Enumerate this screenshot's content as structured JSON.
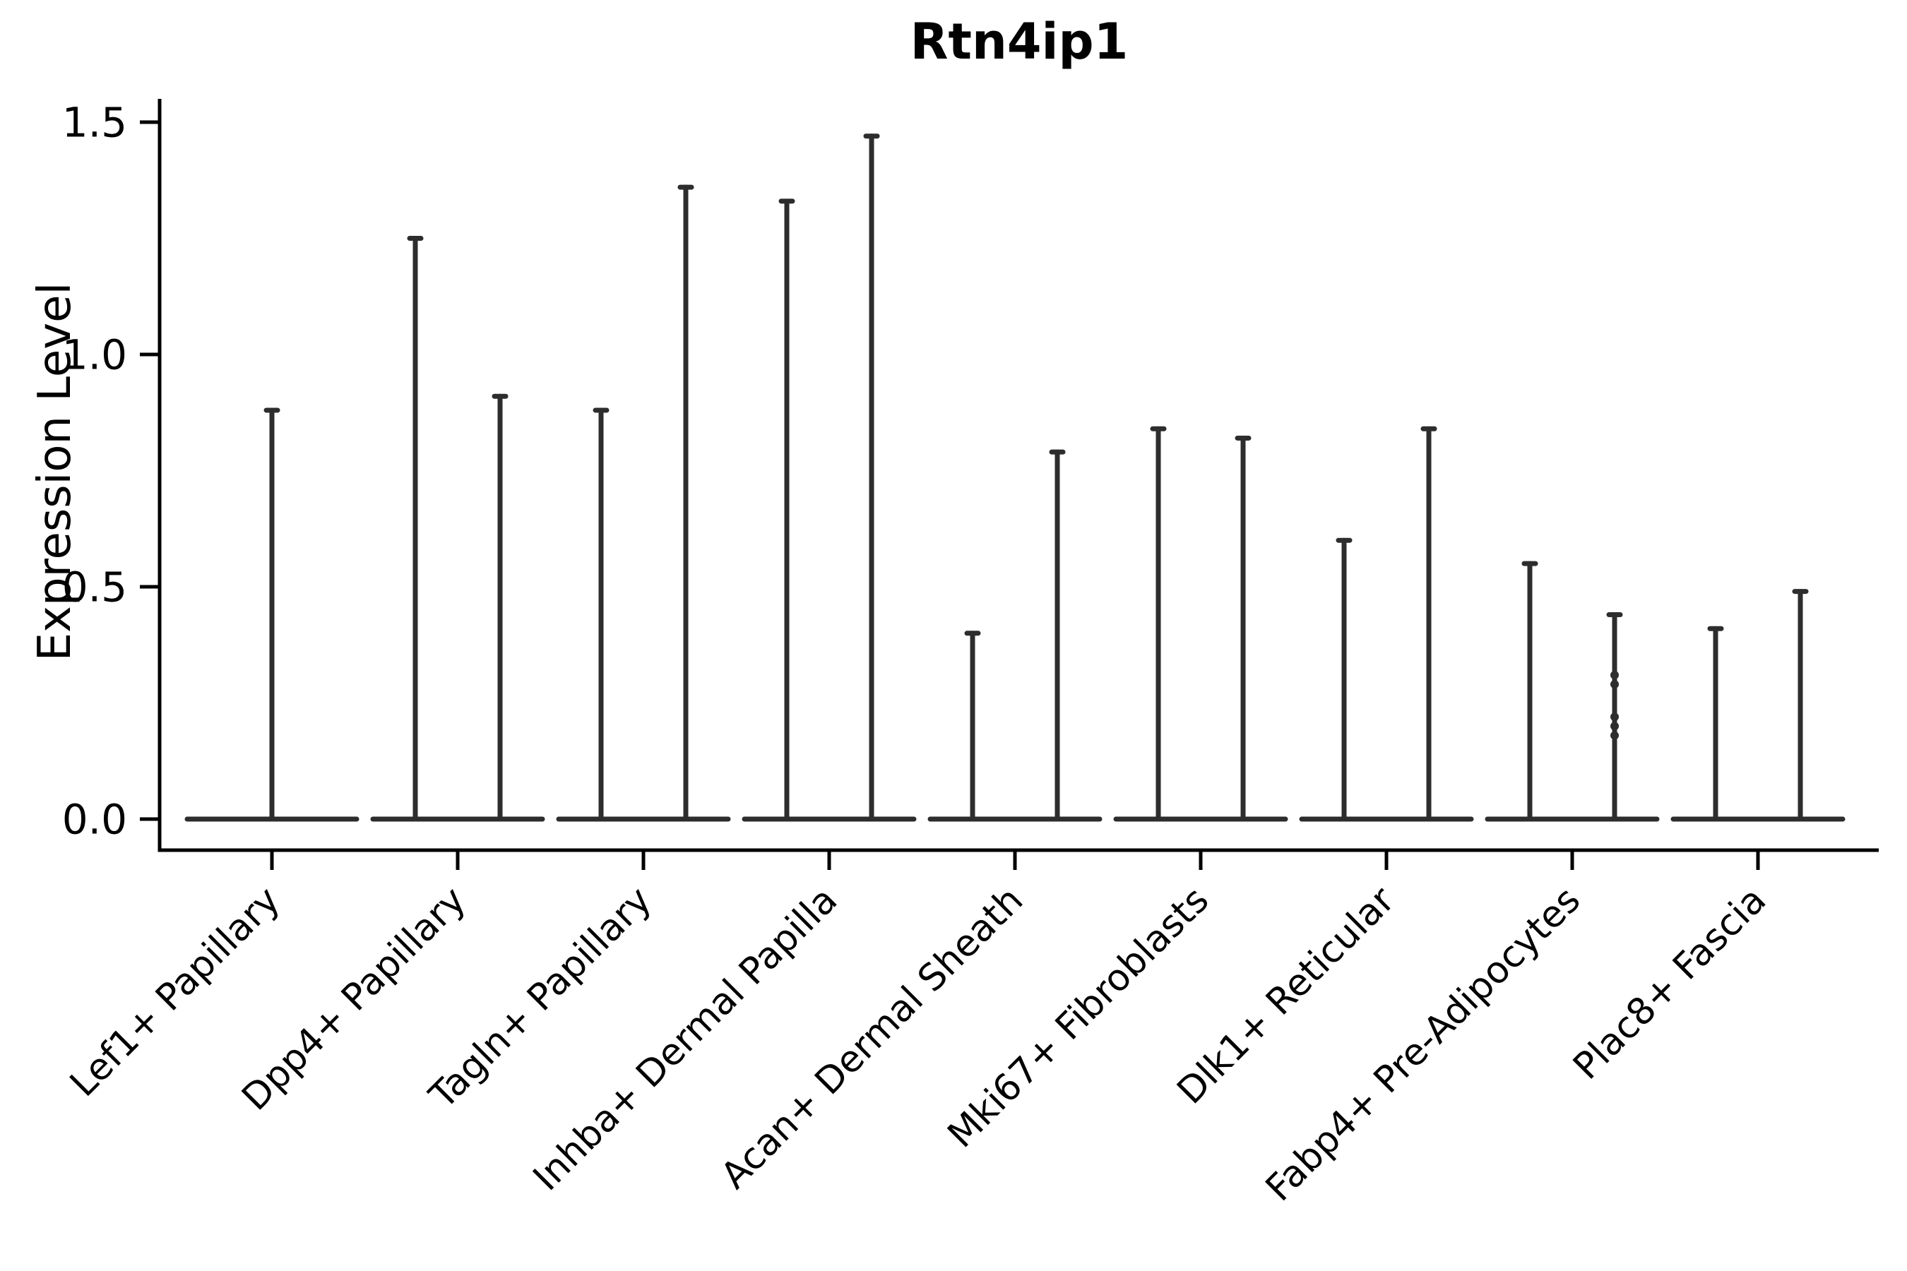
{
  "figure": {
    "title": "Rtn4ip1",
    "ylabel": "Expression Level"
  },
  "chart_data": {
    "type": "violin",
    "title": "Rtn4ip1",
    "xlabel": "",
    "ylabel": "Expression Level",
    "ylim": [
      0,
      1.55
    ],
    "yticks": [
      0.0,
      0.5,
      1.0,
      1.5
    ],
    "ytick_labels": [
      "0.0",
      "0.5",
      "1.0",
      "1.5"
    ],
    "grid": false,
    "legend": "none",
    "categories": [
      "Lef1+ Papillary",
      "Dpp4+ Papillary",
      "Tagln+ Papillary",
      "Inhba+ Dermal Papilla",
      "Acan+ Dermal Sheath",
      "Mki67+ Fibroblasts",
      "Dlk1+ Reticular",
      "Fabp4+ Pre-Adipocytes",
      "Plac8+ Fascia"
    ],
    "violins": [
      {
        "category": "Lef1+ Papillary",
        "needles": [
          {
            "offset": 0,
            "max": 0.88
          }
        ]
      },
      {
        "category": "Dpp4+ Papillary",
        "needles": [
          {
            "offset": -60,
            "max": 1.25
          },
          {
            "offset": 60,
            "max": 0.91
          }
        ]
      },
      {
        "category": "Tagln+ Papillary",
        "needles": [
          {
            "offset": -60,
            "max": 0.88
          },
          {
            "offset": 60,
            "max": 1.36
          }
        ]
      },
      {
        "category": "Inhba+ Dermal Papilla",
        "needles": [
          {
            "offset": -60,
            "max": 1.33
          },
          {
            "offset": 60,
            "max": 1.47
          }
        ]
      },
      {
        "category": "Acan+ Dermal Sheath",
        "needles": [
          {
            "offset": -60,
            "max": 0.4
          },
          {
            "offset": 60,
            "max": 0.79
          }
        ]
      },
      {
        "category": "Mki67+ Fibroblasts",
        "needles": [
          {
            "offset": -60,
            "max": 0.84
          },
          {
            "offset": 60,
            "max": 0.82
          }
        ]
      },
      {
        "category": "Dlk1+ Reticular",
        "needles": [
          {
            "offset": -60,
            "max": 0.6
          },
          {
            "offset": 60,
            "max": 0.84
          }
        ]
      },
      {
        "category": "Fabp4+ Pre-Adipocytes",
        "needles": [
          {
            "offset": -60,
            "max": 0.55
          },
          {
            "offset": 60,
            "max": 0.44
          }
        ]
      },
      {
        "category": "Plac8+ Fascia",
        "needles": [
          {
            "offset": -60,
            "max": 0.41
          },
          {
            "offset": 60,
            "max": 0.49
          }
        ]
      }
    ],
    "jitter_points": [
      {
        "category": "Fabp4+ Pre-Adipocytes",
        "category_index": 7,
        "offset": 60,
        "values": [
          0.31,
          0.29,
          0.22,
          0.2,
          0.18
        ]
      }
    ],
    "colors": {
      "violin_line": "#2d2d2d",
      "axis": "#000000",
      "text": "#000000",
      "background": "#ffffff"
    }
  }
}
